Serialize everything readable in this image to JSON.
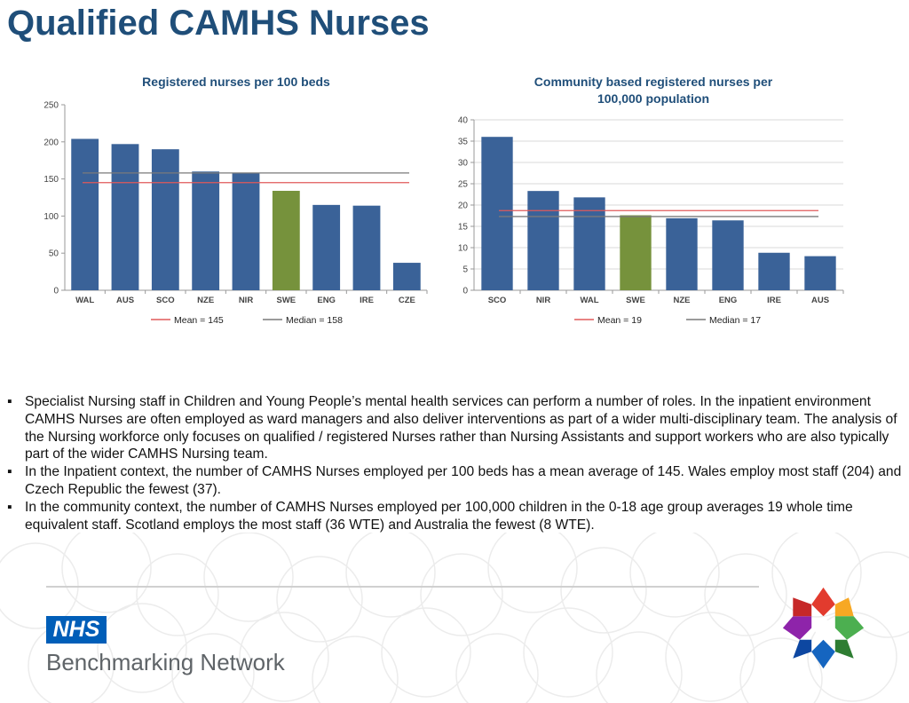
{
  "page": {
    "title": "Qualified CAMHS Nurses",
    "bullets": [
      "Specialist Nursing staff in Children and Young People’s mental health services can perform a number of roles. In the inpatient environment CAMHS Nurses are often employed as ward managers and also deliver interventions as part of a wider multi-disciplinary team. The analysis of the Nursing workforce only focuses on qualified / registered Nurses rather than Nursing Assistants and support workers who are also typically part of the wider CAMHS Nursing team.",
      "In the Inpatient context, the number of CAMHS Nurses employed per 100 beds has a mean average of 145. Wales employ most staff (204) and Czech Republic the fewest (37).",
      "In the community context, the number of CAMHS Nurses employed per 100,000 children in the 0-18 age group averages 19 whole time equivalent staff. Scotland employs the most staff (36 WTE) and Australia the fewest (8 WTE)."
    ],
    "bullet_mark": "▪"
  },
  "footer": {
    "nhs_logo": "NHS",
    "network_name": "Benchmarking Network"
  },
  "colors": {
    "title": "#1f4e79",
    "bar": "#3a6298",
    "highlight_bar": "#76923c",
    "mean_line": "#e05a5a",
    "median_line": "#7a7a7a",
    "nhs_blue": "#005eb8"
  },
  "chart_data": [
    {
      "type": "bar",
      "title": "Registered  nurses per 100 beds",
      "categories": [
        "WAL",
        "AUS",
        "SCO",
        "NZE",
        "NIR",
        "SWE",
        "ENG",
        "IRE",
        "CZE"
      ],
      "values": [
        204,
        197,
        190,
        160,
        158,
        134,
        115,
        114,
        37
      ],
      "highlight_category": "SWE",
      "ylim": [
        0,
        250
      ],
      "yticks": [
        0,
        50,
        100,
        150,
        200,
        250
      ],
      "grid": false,
      "reference_lines": [
        {
          "label": "Mean = 145",
          "value": 145,
          "color": "#e05a5a"
        },
        {
          "label": "Median = 158",
          "value": 158,
          "color": "#7a7a7a"
        }
      ],
      "legend": "bottom"
    },
    {
      "type": "bar",
      "title": "Community  based registered nurses per 100,000 population",
      "categories": [
        "SCO",
        "NIR",
        "WAL",
        "SWE",
        "NZE",
        "ENG",
        "IRE",
        "AUS"
      ],
      "values": [
        36,
        23.3,
        21.8,
        17.6,
        16.9,
        16.4,
        8.8,
        8
      ],
      "highlight_category": "SWE",
      "ylim": [
        0,
        40
      ],
      "yticks": [
        0,
        5,
        10,
        15,
        20,
        25,
        30,
        35,
        40
      ],
      "grid": true,
      "reference_lines": [
        {
          "label": "Mean = 19",
          "value": 18.7,
          "color": "#e05a5a"
        },
        {
          "label": "Median = 17",
          "value": 17.3,
          "color": "#7a7a7a"
        }
      ],
      "legend": "bottom"
    }
  ]
}
